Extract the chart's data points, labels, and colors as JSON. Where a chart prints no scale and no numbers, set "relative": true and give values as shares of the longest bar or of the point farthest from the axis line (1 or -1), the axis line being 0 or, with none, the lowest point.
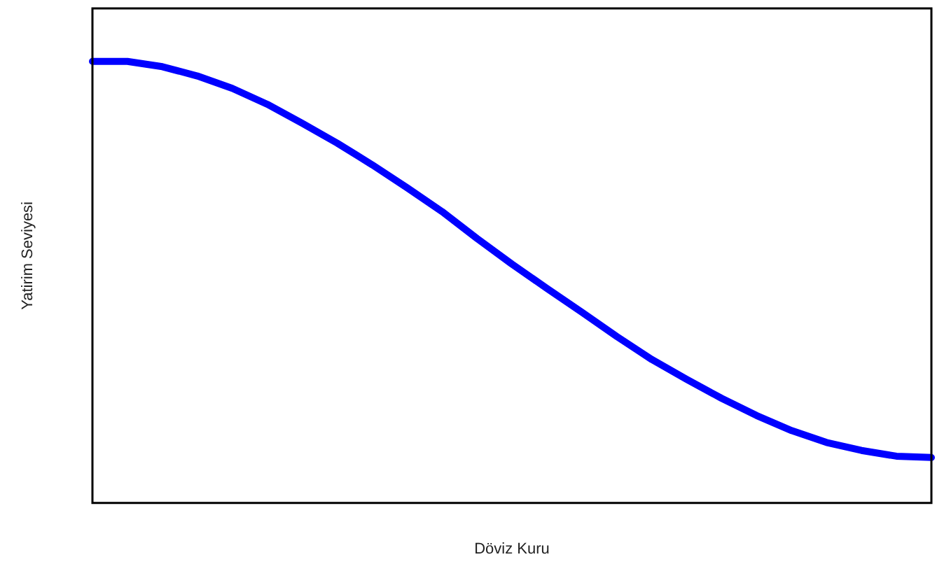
{
  "chart_data": {
    "type": "line",
    "xlabel": "Döviz Kuru",
    "ylabel": "Yatirim Seviyesi",
    "relative": true,
    "legend": false,
    "grid": false,
    "marker": "none",
    "line_style": "solid",
    "categories": [
      null,
      null,
      null,
      null,
      null,
      null,
      null,
      null,
      null,
      null,
      null,
      null,
      null,
      null,
      null,
      null,
      null,
      null,
      null,
      null,
      null,
      null,
      null,
      null,
      null
    ],
    "series": [
      {
        "color": "#0000ff",
        "values": [
          1,
          1,
          0.988,
          0.967,
          0.939,
          0.903,
          0.86,
          0.815,
          0.766,
          0.714,
          0.66,
          0.599,
          0.541,
          0.486,
          0.432,
          0.377,
          0.325,
          0.28,
          0.237,
          0.198,
          0.164,
          0.137,
          0.119,
          0.106,
          0.103
        ]
      }
    ]
  }
}
